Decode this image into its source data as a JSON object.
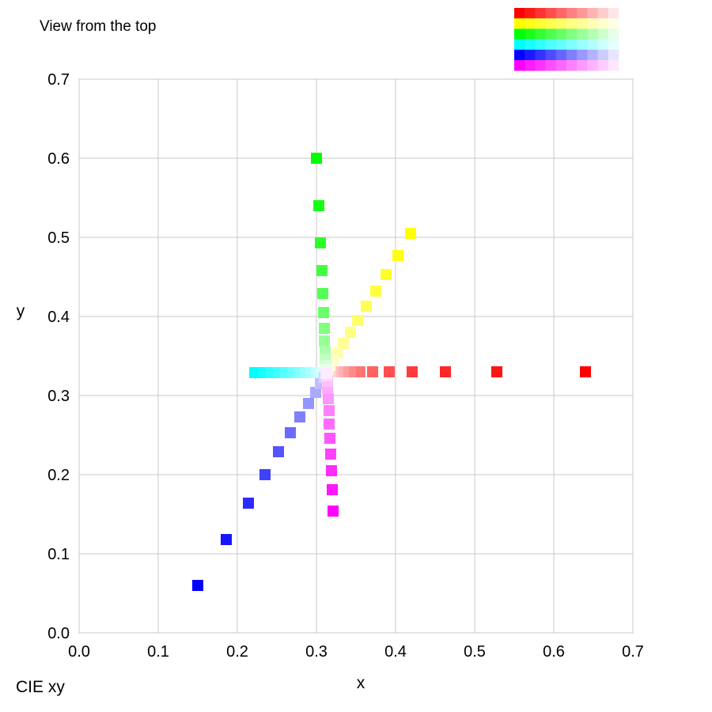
{
  "chart_data": {
    "type": "scatter",
    "title": "View from the top",
    "xlabel": "x",
    "ylabel": "y",
    "caption": "CIE xy",
    "xlim": [
      0,
      0.7
    ],
    "ylim": [
      0,
      0.7
    ],
    "xticks": [
      "0.0",
      "0.1",
      "0.2",
      "0.3",
      "0.4",
      "0.5",
      "0.6",
      "0.7"
    ],
    "yticks": [
      "0.0",
      "0.1",
      "0.2",
      "0.3",
      "0.4",
      "0.5",
      "0.6",
      "0.7"
    ],
    "grid": true,
    "white_point": [
      0.3127,
      0.329
    ],
    "series": [
      {
        "color": "#ff0000",
        "points": [
          [
            0.64,
            0.33
          ],
          [
            0.528,
            0.33
          ],
          [
            0.463,
            0.33
          ],
          [
            0.421,
            0.33
          ],
          [
            0.392,
            0.33
          ],
          [
            0.371,
            0.33
          ],
          [
            0.355,
            0.33
          ],
          [
            0.343,
            0.33
          ],
          [
            0.334,
            0.33
          ],
          [
            0.327,
            0.33
          ],
          [
            0.321,
            0.33
          ],
          [
            0.317,
            0.33
          ],
          [
            0.314,
            0.33
          ]
        ]
      },
      {
        "color": "#ffff00",
        "points": [
          [
            0.419,
            0.505
          ],
          [
            0.403,
            0.477
          ],
          [
            0.388,
            0.453
          ],
          [
            0.375,
            0.432
          ],
          [
            0.363,
            0.413
          ],
          [
            0.352,
            0.395
          ],
          [
            0.343,
            0.38
          ],
          [
            0.334,
            0.366
          ],
          [
            0.327,
            0.354
          ],
          [
            0.321,
            0.345
          ],
          [
            0.317,
            0.338
          ],
          [
            0.314,
            0.333
          ]
        ]
      },
      {
        "color": "#00ff00",
        "points": [
          [
            0.3,
            0.6
          ],
          [
            0.303,
            0.54
          ],
          [
            0.305,
            0.493
          ],
          [
            0.307,
            0.458
          ],
          [
            0.308,
            0.429
          ],
          [
            0.309,
            0.405
          ],
          [
            0.31,
            0.385
          ],
          [
            0.31,
            0.369
          ],
          [
            0.311,
            0.356
          ],
          [
            0.311,
            0.346
          ],
          [
            0.312,
            0.338
          ],
          [
            0.312,
            0.333
          ]
        ]
      },
      {
        "color": "#00ffff",
        "points": [
          [
            0.222,
            0.329
          ],
          [
            0.233,
            0.329
          ],
          [
            0.243,
            0.329
          ],
          [
            0.252,
            0.329
          ],
          [
            0.261,
            0.329
          ],
          [
            0.27,
            0.329
          ],
          [
            0.278,
            0.329
          ],
          [
            0.286,
            0.329
          ],
          [
            0.293,
            0.329
          ],
          [
            0.3,
            0.329
          ],
          [
            0.306,
            0.329
          ],
          [
            0.311,
            0.329
          ]
        ]
      },
      {
        "color": "#0000ff",
        "points": [
          [
            0.15,
            0.06
          ],
          [
            0.186,
            0.118
          ],
          [
            0.214,
            0.164
          ],
          [
            0.235,
            0.2
          ],
          [
            0.252,
            0.229
          ],
          [
            0.267,
            0.253
          ],
          [
            0.279,
            0.273
          ],
          [
            0.29,
            0.29
          ],
          [
            0.299,
            0.304
          ],
          [
            0.305,
            0.315
          ],
          [
            0.31,
            0.323
          ],
          [
            0.312,
            0.328
          ]
        ]
      },
      {
        "color": "#ff00ff",
        "points": [
          [
            0.321,
            0.154
          ],
          [
            0.32,
            0.181
          ],
          [
            0.319,
            0.205
          ],
          [
            0.318,
            0.226
          ],
          [
            0.317,
            0.246
          ],
          [
            0.316,
            0.264
          ],
          [
            0.316,
            0.281
          ],
          [
            0.315,
            0.296
          ],
          [
            0.314,
            0.309
          ],
          [
            0.314,
            0.318
          ],
          [
            0.313,
            0.325
          ],
          [
            0.313,
            0.328
          ]
        ]
      }
    ],
    "swatch_legend": {
      "rows": [
        "#ff0000",
        "#ffff00",
        "#00ff00",
        "#00ffff",
        "#0000ff",
        "#ff00ff"
      ],
      "steps": 10
    }
  }
}
